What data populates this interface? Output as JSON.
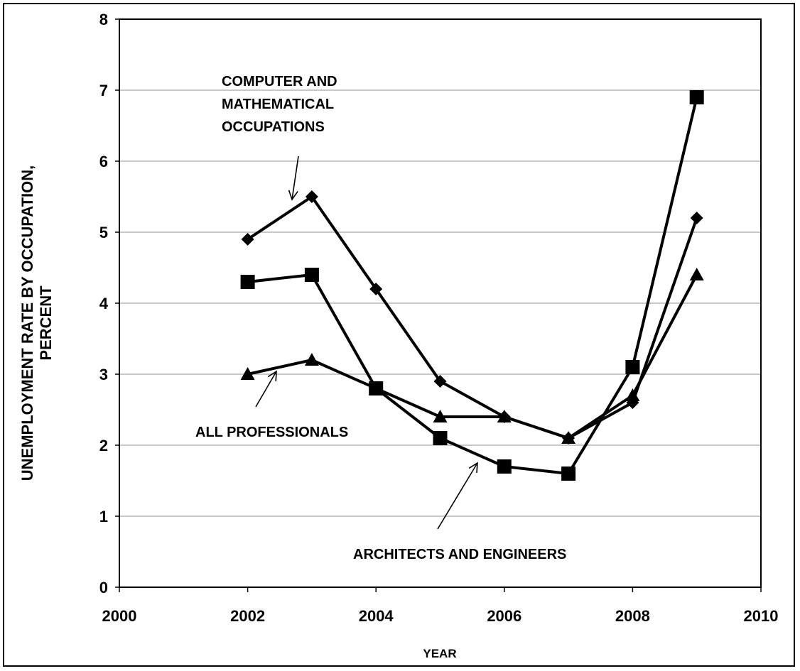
{
  "chart_data": {
    "type": "line",
    "xlabel": "YEAR",
    "ylabel_lines": [
      "UNEMPLOYMENT RATE BY OCCUPATION,",
      "PERCENT"
    ],
    "xlim": [
      2000,
      2010
    ],
    "ylim": [
      0,
      8
    ],
    "x_ticks": [
      "2000",
      "2002",
      "2004",
      "2006",
      "2008",
      "2010"
    ],
    "y_ticks": [
      "0",
      "1",
      "2",
      "3",
      "4",
      "5",
      "6",
      "7",
      "8"
    ],
    "grid": "horizontal",
    "legend": "none (direct annotations with arrows)",
    "x": [
      2002,
      2003,
      2004,
      2005,
      2006,
      2007,
      2008,
      2009
    ],
    "series": [
      {
        "marker": "diamond",
        "values": [
          4.9,
          5.5,
          4.2,
          2.9,
          2.4,
          2.1,
          2.6,
          5.2
        ]
      },
      {
        "marker": "square",
        "values": [
          4.3,
          4.4,
          2.8,
          2.1,
          1.7,
          1.6,
          3.1,
          6.9
        ]
      },
      {
        "marker": "triangle",
        "values": [
          3.0,
          3.2,
          2.8,
          2.4,
          2.4,
          2.1,
          2.7,
          4.4
        ]
      }
    ],
    "annotations": [
      {
        "lines": [
          "COMPUTER AND",
          "MATHEMATICAL",
          "OCCUPATIONS"
        ],
        "points_to": "diamond"
      },
      {
        "lines": [
          "ALL PROFESSIONALS"
        ],
        "points_to": "triangle"
      },
      {
        "lines": [
          "ARCHITECTS AND ENGINEERS"
        ],
        "points_to": "square"
      }
    ],
    "colors": {
      "line": "#000000",
      "grid": "#a6a6a6",
      "background": "#ffffff"
    }
  }
}
